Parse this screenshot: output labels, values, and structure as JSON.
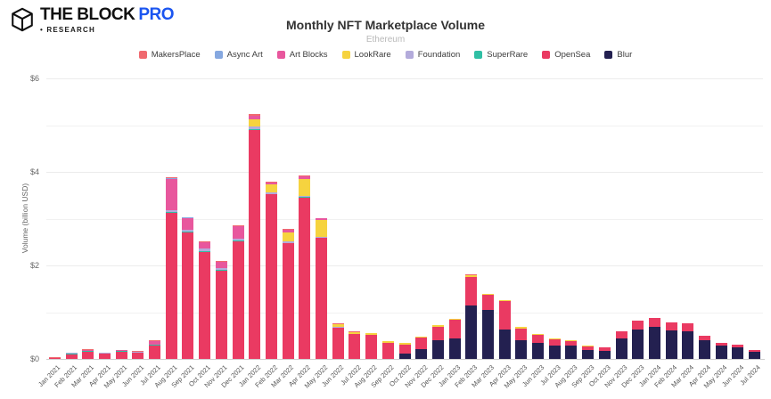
{
  "header": {
    "logo_main": "THE BLOCK",
    "logo_pro": "PRO",
    "logo_research": "• RESEARCH",
    "pro_color": "#1b55f0"
  },
  "chart_data": {
    "type": "bar",
    "stacked": true,
    "title": "Monthly NFT Marketplace Volume",
    "subtitle": "Ethereum",
    "ylabel": "Volume (billion USD)",
    "ylim": [
      0,
      6
    ],
    "grid": true,
    "legend_position": "top",
    "y_ticks": [
      {
        "value": 0,
        "label": "$0"
      },
      {
        "value": 2,
        "label": "$2"
      },
      {
        "value": 4,
        "label": "$4"
      },
      {
        "value": 6,
        "label": "$6"
      }
    ],
    "y_minor_gridlines": [
      1,
      3,
      5
    ],
    "categories": [
      "Jan 2021",
      "Feb 2021",
      "Mar 2021",
      "Apr 2021",
      "May 2021",
      "Jun 2021",
      "Jul 2021",
      "Aug 2021",
      "Sep 2021",
      "Oct 2021",
      "Nov 2021",
      "Dec 2021",
      "Jan 2022",
      "Feb 2022",
      "Mar 2022",
      "Apr 2022",
      "May 2022",
      "Jun 2022",
      "Jul 2022",
      "Aug 2022",
      "Sep 2022",
      "Oct 2022",
      "Nov 2022",
      "Dec 2022",
      "Jan 2023",
      "Feb 2023",
      "Mar 2023",
      "Apr 2023",
      "May 2023",
      "Jun 2023",
      "Jul 2023",
      "Aug 2023",
      "Sep 2023",
      "Oct 2023",
      "Nov 2023",
      "Dec 2023",
      "Jan 2024",
      "Feb 2024",
      "Mar 2024",
      "Apr 2024",
      "May 2024",
      "Jun 2024",
      "Jul 2024"
    ],
    "series": [
      {
        "name": "MakersPlace",
        "color": "#f0696f",
        "values": [
          0.005,
          0.01,
          0.02,
          0.01,
          0.01,
          0.01,
          0.01,
          0.02,
          0.01,
          0.02,
          0.02,
          0.02,
          0.03,
          0.02,
          0.02,
          0.02,
          0.01,
          0.01,
          0.005,
          0.005,
          0.005,
          0,
          0,
          0,
          0,
          0.01,
          0,
          0,
          0,
          0,
          0,
          0,
          0,
          0,
          0,
          0,
          0,
          0,
          0,
          0,
          0,
          0,
          0
        ]
      },
      {
        "name": "Async Art",
        "color": "#86a8e0",
        "values": [
          0,
          0,
          0,
          0,
          0,
          0,
          0,
          0.02,
          0.01,
          0,
          0,
          0,
          0,
          0,
          0,
          0,
          0,
          0,
          0,
          0,
          0,
          0,
          0,
          0,
          0,
          0,
          0,
          0,
          0,
          0,
          0,
          0,
          0,
          0,
          0,
          0,
          0,
          0,
          0,
          0,
          0,
          0,
          0
        ]
      },
      {
        "name": "Art Blocks",
        "color": "#e8579d",
        "values": [
          0,
          0,
          0.01,
          0,
          0.01,
          0.01,
          0.08,
          0.65,
          0.24,
          0.12,
          0.12,
          0.26,
          0.08,
          0.05,
          0.06,
          0.06,
          0.04,
          0.01,
          0,
          0,
          0,
          0,
          0,
          0,
          0,
          0,
          0,
          0,
          0,
          0,
          0,
          0,
          0,
          0,
          0,
          0,
          0,
          0,
          0,
          0,
          0,
          0,
          0
        ]
      },
      {
        "name": "LookRare",
        "color": "#f6d33f",
        "values": [
          0,
          0,
          0,
          0,
          0,
          0,
          0,
          0,
          0,
          0,
          0,
          0,
          0.16,
          0.17,
          0.2,
          0.36,
          0.36,
          0.05,
          0.04,
          0.04,
          0.03,
          0.03,
          0.02,
          0.03,
          0.02,
          0.05,
          0.02,
          0.02,
          0.05,
          0.01,
          0.02,
          0.01,
          0.02,
          0,
          0,
          0,
          0,
          0,
          0,
          0,
          0,
          0,
          0
        ]
      },
      {
        "name": "Foundation",
        "color": "#b3abdb",
        "values": [
          0,
          0.01,
          0.01,
          0.01,
          0.01,
          0.01,
          0.01,
          0.04,
          0.05,
          0.06,
          0.05,
          0.04,
          0.05,
          0.03,
          0.03,
          0.02,
          0.01,
          0.01,
          0.005,
          0.005,
          0,
          0,
          0,
          0,
          0,
          0,
          0,
          0,
          0,
          0,
          0,
          0,
          0,
          0,
          0,
          0,
          0,
          0,
          0,
          0,
          0,
          0,
          0
        ]
      },
      {
        "name": "SuperRare",
        "color": "#2fbfa4",
        "values": [
          0.005,
          0.02,
          0.02,
          0.01,
          0.02,
          0.01,
          0.01,
          0.02,
          0.02,
          0.03,
          0.02,
          0.02,
          0.02,
          0.01,
          0.01,
          0.01,
          0.01,
          0.005,
          0.005,
          0,
          0,
          0,
          0,
          0,
          0,
          0,
          0,
          0,
          0,
          0,
          0,
          0,
          0,
          0,
          0,
          0,
          0,
          0,
          0,
          0,
          0,
          0,
          0
        ]
      },
      {
        "name": "OpenSea",
        "color": "#ea3a62",
        "values": [
          0.02,
          0.1,
          0.15,
          0.11,
          0.15,
          0.13,
          0.29,
          3.13,
          2.7,
          2.28,
          1.88,
          2.52,
          4.9,
          3.52,
          2.47,
          3.45,
          2.59,
          0.67,
          0.53,
          0.51,
          0.35,
          0.2,
          0.25,
          0.29,
          0.4,
          0.61,
          0.32,
          0.61,
          0.24,
          0.18,
          0.14,
          0.11,
          0.08,
          0.08,
          0.15,
          0.19,
          0.19,
          0.17,
          0.16,
          0.1,
          0.05,
          0.05,
          0.04
        ]
      },
      {
        "name": "Blur",
        "color": "#232050",
        "values": [
          0,
          0,
          0,
          0,
          0,
          0,
          0,
          0,
          0,
          0,
          0,
          0,
          0,
          0,
          0,
          0,
          0,
          0,
          0,
          0,
          0,
          0.11,
          0.21,
          0.4,
          0.44,
          1.14,
          1.05,
          0.63,
          0.4,
          0.34,
          0.28,
          0.28,
          0.19,
          0.17,
          0.44,
          0.63,
          0.69,
          0.61,
          0.6,
          0.4,
          0.29,
          0.25,
          0.15
        ]
      }
    ]
  }
}
